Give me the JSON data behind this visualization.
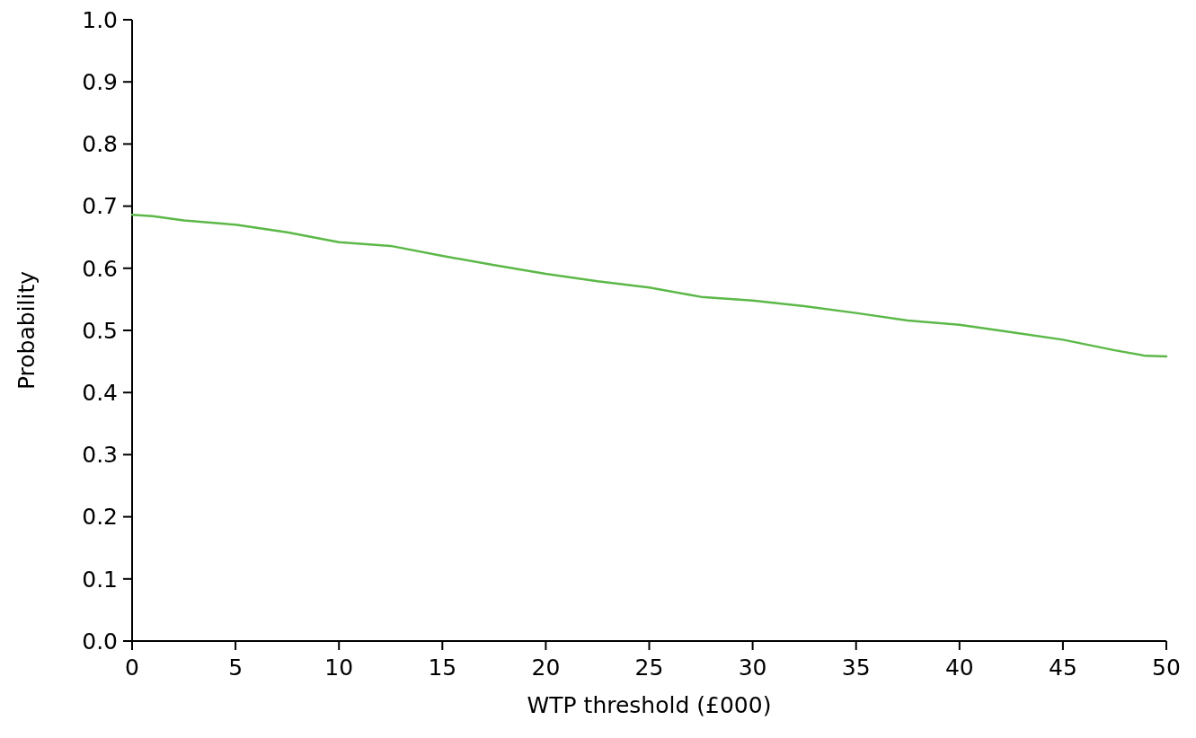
{
  "chart_data": {
    "type": "line",
    "xlabel": "WTP threshold (£000)",
    "ylabel": "Probability",
    "x": [
      0,
      1,
      2.5,
      5,
      7.5,
      10,
      12.5,
      15,
      17.5,
      20,
      22.5,
      25,
      27.5,
      30,
      32.5,
      35,
      37.5,
      40,
      42.5,
      45,
      47.5,
      49,
      50
    ],
    "series": [
      {
        "color": "#5cb848",
        "values": [
          0.686,
          0.684,
          0.677,
          0.67,
          0.658,
          0.642,
          0.636,
          0.62,
          0.605,
          0.591,
          0.579,
          0.569,
          0.554,
          0.548,
          0.539,
          0.528,
          0.516,
          0.509,
          0.497,
          0.485,
          0.468,
          0.459,
          0.458
        ]
      }
    ],
    "xlim": [
      0,
      50
    ],
    "xticks": [
      0,
      5,
      10,
      15,
      20,
      25,
      30,
      35,
      40,
      45,
      50
    ],
    "ylim": [
      0,
      1
    ],
    "yticks": [
      {
        "value": 0,
        "label": "0.0"
      },
      0.1,
      0.2,
      0.3,
      0.4,
      0.5,
      0.6,
      0.7,
      0.8,
      0.9,
      {
        "value": 1,
        "label": "1.0"
      }
    ],
    "grid": false,
    "marker": "none",
    "line_style": "solid"
  }
}
